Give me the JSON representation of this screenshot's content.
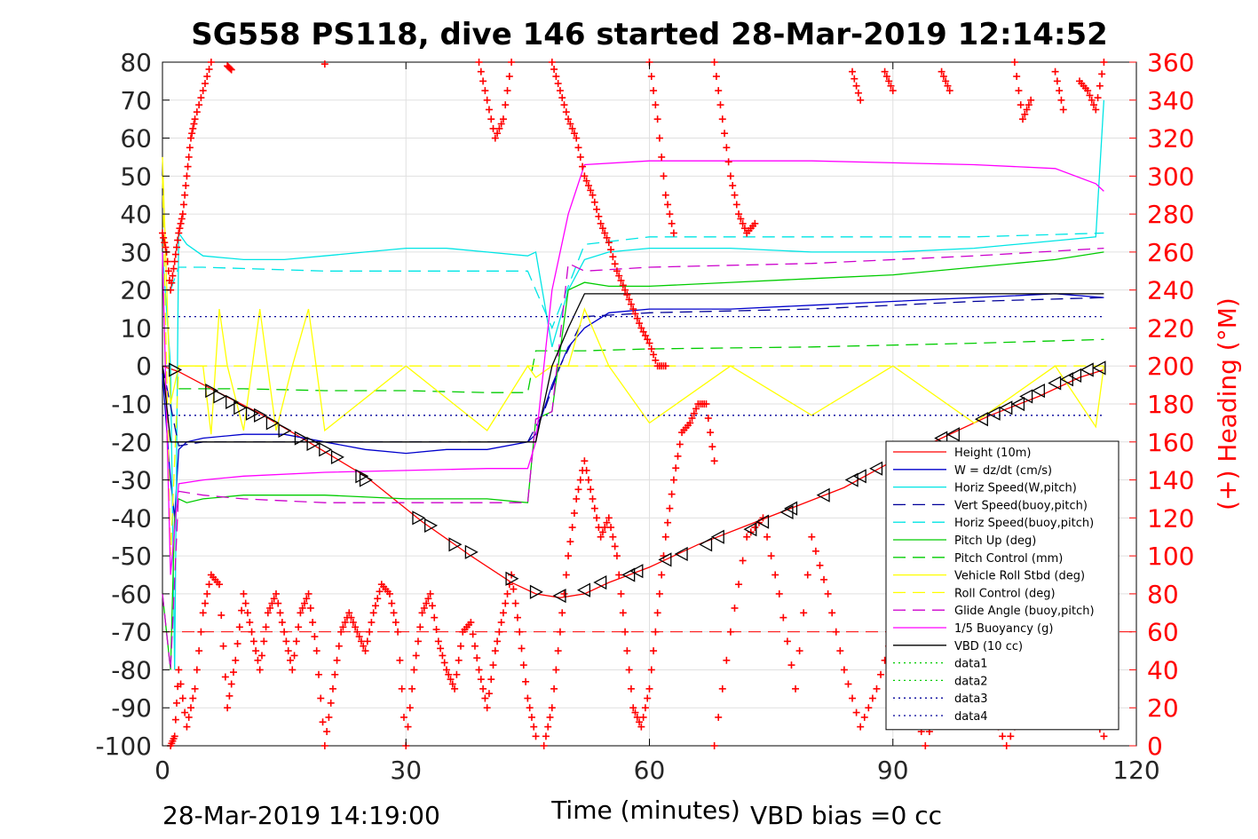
{
  "chart_data": {
    "type": "line",
    "title": "SG558 PS118, dive 146 started 28-Mar-2019 12:14:52",
    "xlabel": "Time (minutes)",
    "ylabel": "",
    "y2label": "(+) Heading (°M)",
    "xlim": [
      0,
      120
    ],
    "ylim": [
      -100,
      80
    ],
    "y2lim": [
      0,
      360
    ],
    "x_ticks": [
      "0",
      "30",
      "60",
      "90",
      "120"
    ],
    "y_ticks": [
      "80",
      "70",
      "60",
      "50",
      "40",
      "30",
      "20",
      "10",
      "0",
      "-10",
      "-20",
      "-30",
      "-40",
      "-50",
      "-60",
      "-70",
      "-80",
      "-90",
      "-100"
    ],
    "y2_ticks": [
      "360",
      "340",
      "320",
      "300",
      "280",
      "260",
      "240",
      "220",
      "200",
      "180",
      "160",
      "140",
      "120",
      "100",
      "80",
      "60",
      "40",
      "20",
      "0"
    ],
    "grid": true,
    "legend_position": "bottom-right",
    "footer_left": "28-Mar-2019 14:19:00",
    "footer_right": "VBD bias =0 cc",
    "series": [
      {
        "name": "Height (10m)",
        "color": "#ff0000",
        "style": "solid",
        "x": [
          0,
          2,
          6,
          12,
          18,
          25,
          32,
          38,
          43,
          46,
          49,
          52,
          55,
          60,
          66,
          72,
          78,
          84,
          90,
          96,
          102,
          108,
          113,
          116
        ],
        "y": [
          0,
          -1.5,
          -6,
          -12.5,
          -20,
          -29,
          -41,
          -50,
          -57,
          -60,
          -61,
          -60,
          -57,
          -53,
          -47,
          -42,
          -37,
          -32,
          -25,
          -19,
          -13,
          -8,
          -3,
          -1
        ]
      },
      {
        "name": "W = dz/dt (cm/s)",
        "color": "#0000cc",
        "style": "solid",
        "x": [
          0,
          1,
          1.5,
          2,
          3,
          5,
          10,
          15,
          20,
          25,
          30,
          35,
          40,
          45,
          46,
          48,
          50,
          52,
          55,
          60,
          70,
          80,
          90,
          100,
          110,
          116
        ],
        "y": [
          -2,
          -30,
          -40,
          -22,
          -20,
          -19,
          -18,
          -18,
          -20,
          -22,
          -23,
          -22,
          -22,
          -20,
          -18,
          -5,
          5,
          10,
          14,
          15,
          15,
          16,
          17,
          18,
          19,
          18
        ]
      },
      {
        "name": "Horiz Speed(W,pitch)",
        "color": "#00e5e5",
        "style": "solid",
        "x": [
          0,
          1,
          1.5,
          2,
          3,
          5,
          10,
          15,
          20,
          25,
          30,
          35,
          40,
          45,
          46,
          48,
          50,
          52,
          55,
          60,
          70,
          80,
          90,
          100,
          110,
          115,
          116
        ],
        "y": [
          30,
          0,
          -80,
          35,
          32,
          29,
          28,
          28,
          29,
          30,
          31,
          31,
          30,
          29,
          30,
          5,
          20,
          28,
          30,
          31,
          31,
          30,
          30,
          31,
          33,
          34,
          70
        ]
      },
      {
        "name": "Vert Speed(buoy,pitch)",
        "color": "#000099",
        "style": "dashed",
        "x": [
          0,
          2,
          5,
          20,
          45,
          47,
          49,
          52,
          60,
          80,
          100,
          116
        ],
        "y": [
          0,
          -21,
          -20,
          -20,
          -20,
          -12,
          0,
          13,
          14,
          15,
          17,
          18
        ]
      },
      {
        "name": "Horiz Speed(buoy,pitch)",
        "color": "#00e5e5",
        "style": "dashed",
        "x": [
          1,
          2,
          5,
          20,
          45,
          46,
          48,
          52,
          60,
          80,
          100,
          116
        ],
        "y": [
          20,
          26,
          26,
          25,
          25,
          20,
          10,
          32,
          34,
          34,
          34,
          35
        ]
      },
      {
        "name": "Pitch Up (deg)",
        "color": "#00cc00",
        "style": "solid",
        "x": [
          0,
          1,
          1.5,
          2,
          3,
          5,
          10,
          20,
          30,
          40,
          45,
          46,
          48,
          50,
          52,
          55,
          60,
          70,
          80,
          90,
          100,
          110,
          116
        ],
        "y": [
          -60,
          -80,
          -40,
          -35,
          -36,
          -35,
          -34,
          -34,
          -35,
          -35,
          -36,
          -14,
          -12,
          20,
          22,
          21,
          21,
          22,
          23,
          24,
          26,
          28,
          30
        ]
      },
      {
        "name": "Pitch Control (mm)",
        "color": "#00cc00",
        "style": "dashed",
        "x": [
          2,
          10,
          20,
          30,
          40,
          45,
          46,
          52,
          60,
          80,
          100,
          116
        ],
        "y": [
          -6,
          -6,
          -6.5,
          -6.5,
          -7,
          -7,
          4,
          4,
          4.5,
          5,
          6,
          7
        ]
      },
      {
        "name": "Vehicle Roll Stbd (deg)",
        "color": "#ffff00",
        "style": "solid",
        "x": [
          0,
          1,
          2,
          5,
          6,
          7,
          8,
          10,
          12,
          14,
          16,
          18,
          20,
          30,
          40,
          45,
          46,
          48,
          50,
          52,
          55,
          60,
          70,
          80,
          90,
          100,
          110,
          115,
          116
        ],
        "y": [
          55,
          -10,
          0,
          0,
          -18,
          15,
          0,
          -17,
          15,
          -17,
          0,
          15,
          -17,
          0,
          -17,
          0,
          -3,
          0,
          0,
          15,
          0,
          -15,
          0,
          -13,
          0,
          -15,
          0,
          -16,
          0
        ]
      },
      {
        "name": "Roll Control (deg)",
        "color": "#ffff00",
        "style": "dashed",
        "x": [
          0,
          1,
          2,
          116
        ],
        "y": [
          50,
          -50,
          0,
          0
        ]
      },
      {
        "name": "Glide Angle (buoy,pitch)",
        "color": "#cc00cc",
        "style": "dashed",
        "x": [
          0,
          1,
          2,
          5,
          10,
          20,
          30,
          40,
          45,
          46,
          48,
          50,
          52,
          60,
          80,
          100,
          116
        ],
        "y": [
          -60,
          -80,
          -33,
          -34,
          -35,
          -36,
          -36,
          -36,
          -36,
          -14,
          -12,
          27,
          25,
          26,
          27,
          29,
          31
        ]
      },
      {
        "name": "1/5 Buoyancy (g)",
        "color": "#ff00ff",
        "style": "solid",
        "x": [
          0,
          1,
          2,
          5,
          10,
          20,
          30,
          40,
          45,
          46,
          48,
          50,
          52,
          60,
          80,
          100,
          110,
          115,
          116
        ],
        "y": [
          30,
          -55,
          -31,
          -30,
          -29,
          -28,
          -27.5,
          -27,
          -27,
          -20,
          20,
          40,
          53,
          54,
          54,
          53,
          52,
          48,
          46
        ]
      },
      {
        "name": "VBD (10 cc)",
        "color": "#000000",
        "style": "solid",
        "x": [
          0,
          1,
          2,
          45,
          46,
          48,
          50,
          52,
          116
        ],
        "y": [
          0,
          -20,
          -20,
          -20,
          -20,
          0,
          10,
          19,
          19
        ]
      },
      {
        "name": "data1",
        "color": "#00cc00",
        "style": "dotted",
        "x": [],
        "y": []
      },
      {
        "name": "data2",
        "color": "#00cc00",
        "style": "dotted",
        "x": [],
        "y": []
      },
      {
        "name": "data3",
        "color": "#000099",
        "style": "dotted",
        "x": [
          0,
          116
        ],
        "y": [
          13,
          13
        ]
      },
      {
        "name": "data4",
        "color": "#000099",
        "style": "dotted",
        "x": [
          0,
          116
        ],
        "y": [
          -13,
          -13
        ]
      }
    ],
    "extra_lines": {
      "dashed_red_y": -70
    },
    "markers": {
      "name": "triangle markers",
      "x": [
        1.5,
        6,
        7,
        8.5,
        9.5,
        11,
        12,
        13.5,
        15,
        17,
        18.5,
        20,
        21.5,
        24.5,
        25,
        31.5,
        33,
        36,
        38,
        43,
        46,
        49,
        52,
        54,
        57.5,
        58.5,
        62,
        64,
        67,
        68.5,
        72.5,
        74,
        77,
        77.5,
        81.5,
        85,
        86,
        88,
        96,
        97.5,
        101,
        102.5,
        104,
        105.5,
        106.5,
        108,
        110,
        111.5,
        112.5,
        114,
        115.5
      ],
      "y": [
        -1,
        -6.5,
        -8,
        -9.5,
        -11,
        -12.5,
        -13,
        -15,
        -17,
        -19,
        -20.5,
        -22,
        -24,
        -29,
        -30,
        -40,
        -42,
        -47,
        -49,
        -56,
        -59.5,
        -60.5,
        -59,
        -57,
        -55,
        -54,
        -51,
        -49.5,
        -47,
        -45,
        -43,
        -41,
        -38.5,
        -37.5,
        -34,
        -30,
        -29,
        -27,
        -19,
        -18,
        -14,
        -12.5,
        -11,
        -10,
        -8,
        -6.5,
        -4.5,
        -3.5,
        -2.5,
        -1,
        -0.5
      ]
    },
    "heading_segments": [
      {
        "x": [
          0,
          0.5,
          1,
          1.5,
          2,
          2.5,
          3,
          3.5,
          4,
          5,
          6
        ],
        "h": [
          270,
          260,
          240,
          255,
          270,
          280,
          300,
          320,
          330,
          345,
          360
        ]
      },
      {
        "x": [
          8,
          8.5
        ],
        "h": [
          358,
          356
        ]
      },
      {
        "x": [
          20
        ],
        "h": [
          359
        ]
      },
      {
        "x": [
          39,
          40,
          41,
          42,
          43
        ],
        "h": [
          360,
          340,
          320,
          330,
          360
        ]
      },
      {
        "x": [
          48,
          49,
          50,
          51,
          52,
          53,
          54,
          55,
          56,
          57,
          58,
          59,
          60,
          61,
          62
        ],
        "h": [
          360,
          345,
          330,
          320,
          300,
          290,
          275,
          265,
          250,
          240,
          230,
          220,
          212,
          200,
          200
        ]
      },
      {
        "x": [
          60,
          61,
          62,
          63
        ],
        "h": [
          360,
          330,
          290,
          270
        ]
      },
      {
        "x": [
          68,
          69,
          70,
          71,
          72,
          73
        ],
        "h": [
          360,
          330,
          300,
          280,
          270,
          275
        ]
      },
      {
        "x": [
          85,
          86
        ],
        "h": [
          355,
          340
        ]
      },
      {
        "x": [
          89,
          90
        ],
        "h": [
          355,
          345
        ]
      },
      {
        "x": [
          96,
          97
        ],
        "h": [
          355,
          345
        ]
      },
      {
        "x": [
          105,
          106,
          107
        ],
        "h": [
          360,
          330,
          340
        ]
      },
      {
        "x": [
          110,
          111
        ],
        "h": [
          355,
          335
        ]
      },
      {
        "x": [
          113,
          114,
          115,
          116
        ],
        "h": [
          350,
          345,
          335,
          360
        ]
      },
      {
        "x": [
          1,
          1.5,
          2,
          3,
          4,
          5,
          6,
          7,
          8,
          9,
          10,
          11,
          12,
          13,
          14,
          15,
          16,
          17,
          18,
          19,
          20,
          21,
          22,
          23,
          24,
          25,
          26,
          27,
          28,
          29,
          30,
          31,
          32,
          33,
          34,
          35,
          36,
          37,
          38,
          39,
          40,
          41,
          42,
          43,
          44,
          45,
          46
        ],
        "h": [
          0,
          5,
          40,
          10,
          30,
          70,
          90,
          85,
          20,
          45,
          80,
          60,
          40,
          70,
          80,
          60,
          40,
          70,
          80,
          50,
          0,
          30,
          60,
          70,
          60,
          50,
          70,
          85,
          80,
          60,
          0,
          40,
          70,
          80,
          55,
          40,
          30,
          60,
          65,
          40,
          20,
          50,
          70,
          90,
          60,
          25,
          5
        ]
      },
      {
        "x": [
          47,
          48,
          49,
          50,
          51,
          52,
          53,
          54,
          55,
          56,
          57,
          58,
          59,
          60,
          61,
          62,
          63,
          64,
          65,
          66,
          67,
          68
        ],
        "h": [
          0,
          20,
          60,
          100,
          130,
          150,
          130,
          110,
          120,
          100,
          60,
          20,
          10,
          30,
          70,
          110,
          140,
          165,
          170,
          180,
          180,
          150
        ]
      },
      {
        "x": [
          68,
          70,
          72,
          74,
          76,
          78,
          80,
          82,
          84,
          86,
          88,
          90,
          92,
          94,
          96,
          98,
          100,
          102,
          104,
          106,
          108,
          110,
          112,
          114,
          116
        ],
        "h": [
          0,
          60,
          110,
          120,
          80,
          30,
          110,
          80,
          40,
          10,
          30,
          60,
          30,
          0,
          30,
          50,
          60,
          20,
          0,
          20,
          50,
          60,
          30,
          20,
          5
        ]
      }
    ]
  }
}
